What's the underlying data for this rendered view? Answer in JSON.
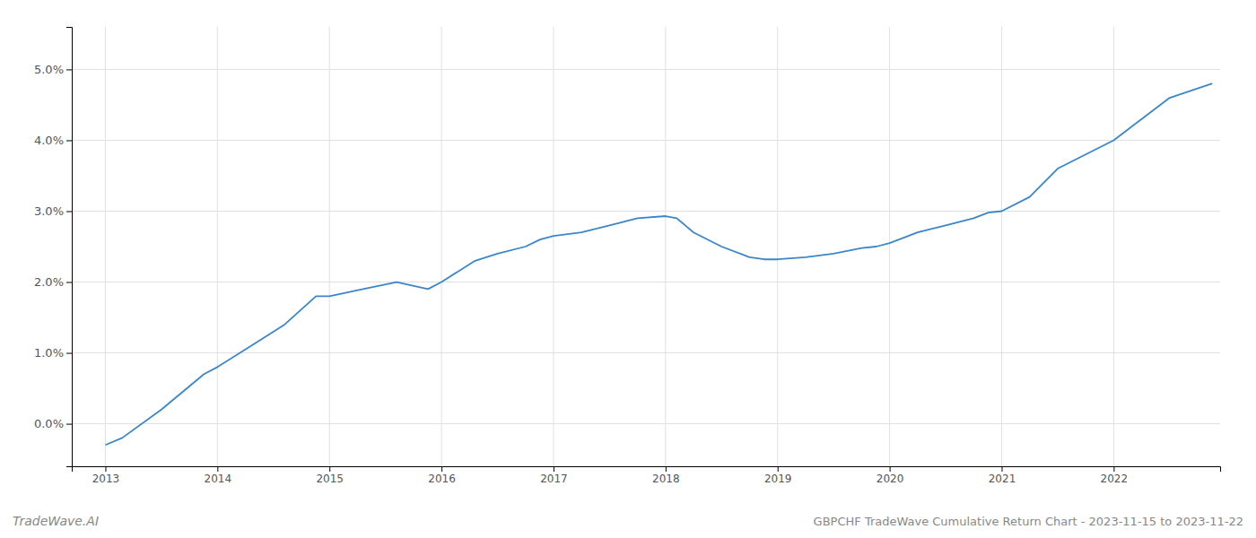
{
  "chart_data": {
    "type": "line",
    "title": "GBPCHF TradeWave Cumulative Return Chart - 2023-11-15 to 2023-11-22",
    "annotations": [
      "TradeWave.AI"
    ],
    "x": [
      2013.0,
      2013.15,
      2013.5,
      2013.88,
      2014.0,
      2014.3,
      2014.6,
      2014.88,
      2015.0,
      2015.3,
      2015.6,
      2015.88,
      2016.0,
      2016.3,
      2016.5,
      2016.75,
      2016.88,
      2017.0,
      2017.25,
      2017.5,
      2017.75,
      2018.0,
      2018.1,
      2018.25,
      2018.5,
      2018.75,
      2018.88,
      2019.0,
      2019.25,
      2019.5,
      2019.75,
      2019.88,
      2020.0,
      2020.25,
      2020.5,
      2020.75,
      2020.88,
      2021.0,
      2021.25,
      2021.5,
      2021.75,
      2022.0,
      2022.25,
      2022.5,
      2022.88
    ],
    "values": [
      -0.003,
      -0.002,
      0.002,
      0.007,
      0.008,
      0.011,
      0.014,
      0.018,
      0.018,
      0.019,
      0.02,
      0.019,
      0.02,
      0.023,
      0.024,
      0.025,
      0.026,
      0.0265,
      0.027,
      0.028,
      0.029,
      0.0293,
      0.029,
      0.027,
      0.025,
      0.0235,
      0.0232,
      0.0232,
      0.0235,
      0.024,
      0.0248,
      0.025,
      0.0255,
      0.027,
      0.028,
      0.029,
      0.0298,
      0.03,
      0.032,
      0.036,
      0.038,
      0.04,
      0.043,
      0.046,
      0.048
    ],
    "color": "#3a86c8",
    "xlim": [
      2012.7,
      2022.95
    ],
    "xticks": [
      2013,
      2014,
      2015,
      2016,
      2017,
      2018,
      2019,
      2020,
      2021,
      2022
    ],
    "ylim": [
      -0.006,
      0.056
    ],
    "yticks": [
      {
        "value": 0.0,
        "label": "0.0%"
      },
      {
        "value": 0.01,
        "label": "1.0%"
      },
      {
        "value": 0.02,
        "label": "2.0%"
      },
      {
        "value": 0.03,
        "label": "3.0%"
      },
      {
        "value": 0.04,
        "label": "4.0%"
      },
      {
        "value": 0.05,
        "label": "5.0%"
      }
    ],
    "grid": true
  }
}
